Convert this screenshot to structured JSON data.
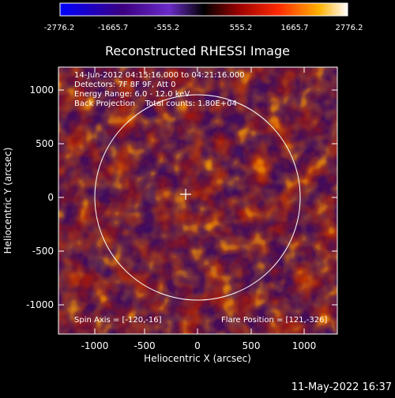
{
  "colorbar": {
    "tick_labels": [
      "-2776.2",
      "-1665.7",
      "-555.2",
      "555.2",
      "1665.7",
      "2776.2"
    ],
    "colors": [
      "#0000ff",
      "#3c0080",
      "#6a2bc8",
      "#000000",
      "#9a0000",
      "#ff2a00",
      "#ffb000",
      "#ffffff"
    ]
  },
  "plot": {
    "title": "Reconstructed RHESSI Image",
    "xlabel": "Heliocentric X (arcsec)",
    "ylabel": "Heliocentric Y (arcsec)",
    "x_ticks": [
      "-1000",
      "-500",
      "0",
      "500",
      "1000"
    ],
    "y_ticks": [
      "1000",
      "500",
      "0",
      "-500",
      "-1000"
    ],
    "info_lines": [
      "14-Jun-2012 04:15:16.000 to 04:21:16.000",
      "Detectors: 7F 8F 9F, Att 0",
      "Energy Range: 6.0 - 12.0 keV",
      "Back Projection    Total counts: 1.80E+04"
    ],
    "spin_axis": "Spin Axis = [-120,-16]",
    "flare_position": "Flare Position = [121,-326]"
  },
  "footer": {
    "timestamp": "11-May-2022 16:37"
  }
}
